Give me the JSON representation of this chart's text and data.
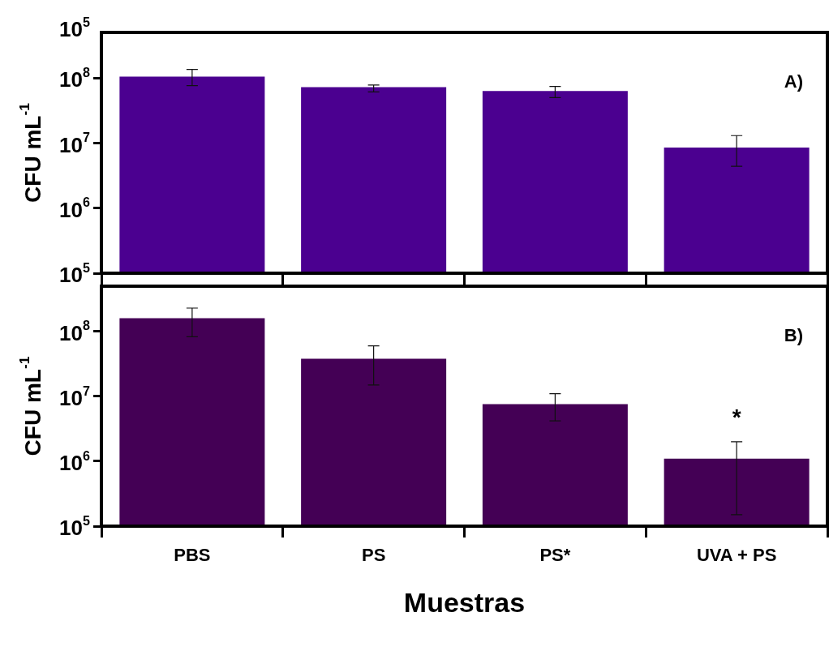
{
  "chart_data": [
    {
      "type": "bar",
      "ylabel": "CFU mL$^{-1}$",
      "categories": [
        null,
        null,
        null,
        null
      ],
      "log": "y",
      "tick_labels": "y",
      "grid": false,
      "legend": false,
      "ylim": [
        100000,
        500000000
      ],
      "yticks": [
        {
          "value": 100000,
          "label": "10$^{5}$"
        },
        {
          "value": 1000000,
          "label": "10$^{6}$"
        },
        {
          "value": 10000000,
          "label": "10$^{7}$"
        },
        {
          "value": 100000000,
          "label": "10$^{8}$"
        }
      ],
      "series": [
        {
          "color": "#4b0090",
          "values": [
            105000000,
            72000000,
            63000000,
            8500000
          ],
          "errors": [
            [
              76000000,
              135000000
            ],
            [
              61000000,
              78000000
            ],
            [
              50000000,
              74000000
            ],
            [
              4400000,
              13000000
            ]
          ]
        }
      ],
      "annotations": [
        "A)",
        "10$^{5}$"
      ]
    },
    {
      "type": "bar",
      "ylabel": "CFU mL$^{-1}$",
      "xlabel": "Muestras",
      "categories": [
        "PBS",
        "PS",
        "PS*",
        "UVA + PS"
      ],
      "log": "y",
      "grid": false,
      "legend": false,
      "ylim": [
        100000,
        500000000
      ],
      "yticks": [
        {
          "value": 100000,
          "label": "10$^{5}$"
        },
        {
          "value": 1000000,
          "label": "10$^{6}$"
        },
        {
          "value": 10000000,
          "label": "10$^{7}$"
        },
        {
          "value": 100000000,
          "label": "10$^{8}$"
        }
      ],
      "series": [
        {
          "color": "#440055",
          "values": [
            160000000,
            38000000,
            7600000,
            1100000
          ],
          "errors": [
            [
              83000000,
              230000000
            ],
            [
              15000000,
              60000000
            ],
            [
              4200000,
              11000000
            ],
            [
              150000,
              2000000
            ]
          ]
        }
      ],
      "annotations": [
        "B)",
        "*"
      ]
    }
  ]
}
